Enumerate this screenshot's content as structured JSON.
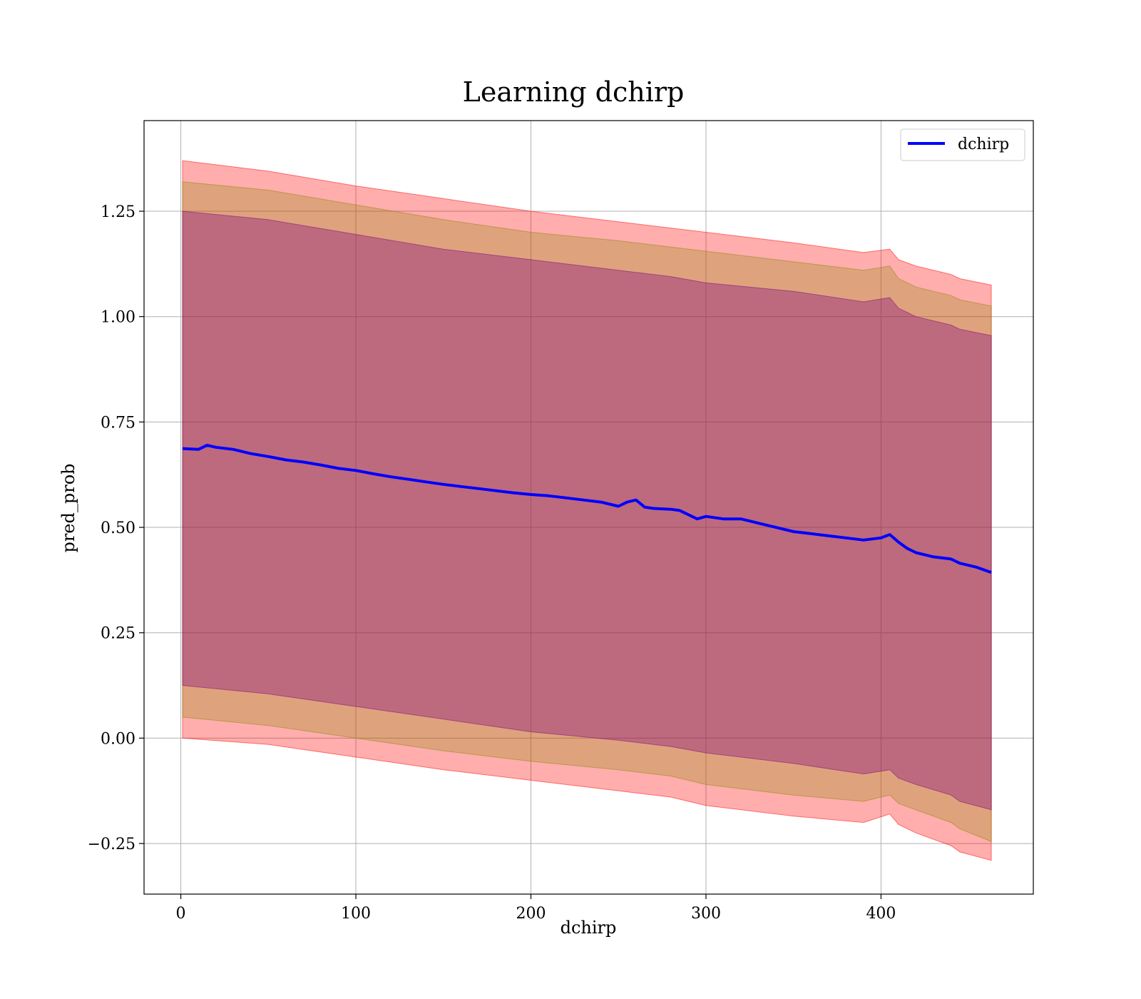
{
  "chart_data": {
    "type": "line",
    "title": "Learning dchirp",
    "xlabel": "dchirp",
    "ylabel": "pred_prob",
    "xlim": [
      -21,
      487
    ],
    "ylim": [
      -0.37,
      1.465
    ],
    "x_ticks": [
      0,
      100,
      200,
      300,
      400
    ],
    "x_tick_labels": [
      "0",
      "100",
      "200",
      "300",
      "400"
    ],
    "y_ticks": [
      -0.25,
      0.0,
      0.25,
      0.5,
      0.75,
      1.0,
      1.25
    ],
    "y_tick_labels": [
      "−0.25",
      "0.00",
      "0.25",
      "0.50",
      "0.75",
      "1.00",
      "1.25"
    ],
    "grid": true,
    "legend": {
      "position": "top-right",
      "entries": [
        "dchirp"
      ]
    },
    "series": [
      {
        "name": "dchirp",
        "color": "#0000ff",
        "x": [
          1,
          10,
          15,
          20,
          30,
          40,
          50,
          60,
          70,
          80,
          90,
          100,
          110,
          120,
          130,
          140,
          150,
          160,
          170,
          180,
          190,
          200,
          210,
          220,
          230,
          240,
          250,
          255,
          260,
          265,
          270,
          280,
          285,
          290,
          295,
          300,
          310,
          320,
          330,
          340,
          350,
          360,
          370,
          380,
          390,
          400,
          405,
          410,
          415,
          420,
          430,
          440,
          445,
          450,
          455,
          463
        ],
        "y": [
          0.687,
          0.685,
          0.695,
          0.69,
          0.685,
          0.675,
          0.668,
          0.66,
          0.655,
          0.648,
          0.64,
          0.635,
          0.627,
          0.62,
          0.614,
          0.608,
          0.602,
          0.597,
          0.592,
          0.587,
          0.582,
          0.578,
          0.575,
          0.57,
          0.565,
          0.56,
          0.55,
          0.56,
          0.565,
          0.548,
          0.545,
          0.543,
          0.54,
          0.53,
          0.52,
          0.526,
          0.52,
          0.52,
          0.51,
          0.5,
          0.49,
          0.485,
          0.48,
          0.475,
          0.47,
          0.475,
          0.483,
          0.465,
          0.45,
          0.44,
          0.43,
          0.425,
          0.415,
          0.41,
          0.405,
          0.393
        ]
      }
    ],
    "bands": {
      "x": [
        1,
        50,
        100,
        150,
        200,
        250,
        280,
        300,
        350,
        390,
        405,
        410,
        420,
        440,
        445,
        463
      ],
      "outer": {
        "color": "#ff0000",
        "opacity": 0.32,
        "upper": [
          1.37,
          1.345,
          1.31,
          1.28,
          1.25,
          1.225,
          1.21,
          1.2,
          1.175,
          1.152,
          1.16,
          1.135,
          1.12,
          1.1,
          1.09,
          1.075
        ],
        "lower": [
          0.0,
          -0.015,
          -0.045,
          -0.075,
          -0.1,
          -0.125,
          -0.14,
          -0.16,
          -0.185,
          -0.2,
          -0.18,
          -0.205,
          -0.225,
          -0.255,
          -0.27,
          -0.29
        ]
      },
      "middle": {
        "color": "#888800",
        "opacity": 0.28,
        "upper": [
          1.32,
          1.3,
          1.265,
          1.23,
          1.2,
          1.18,
          1.165,
          1.155,
          1.13,
          1.11,
          1.12,
          1.09,
          1.07,
          1.05,
          1.04,
          1.025
        ],
        "lower": [
          0.05,
          0.03,
          0.0,
          -0.03,
          -0.055,
          -0.075,
          -0.09,
          -0.11,
          -0.135,
          -0.15,
          -0.135,
          -0.155,
          -0.17,
          -0.2,
          -0.215,
          -0.245
        ]
      },
      "inner": {
        "color": "#800080",
        "opacity": 0.35,
        "upper": [
          1.25,
          1.23,
          1.195,
          1.16,
          1.135,
          1.11,
          1.095,
          1.08,
          1.06,
          1.035,
          1.045,
          1.02,
          1.0,
          0.98,
          0.97,
          0.955
        ],
        "lower": [
          0.125,
          0.105,
          0.075,
          0.045,
          0.015,
          -0.005,
          -0.02,
          -0.035,
          -0.06,
          -0.085,
          -0.075,
          -0.095,
          -0.11,
          -0.135,
          -0.15,
          -0.17
        ]
      }
    }
  }
}
